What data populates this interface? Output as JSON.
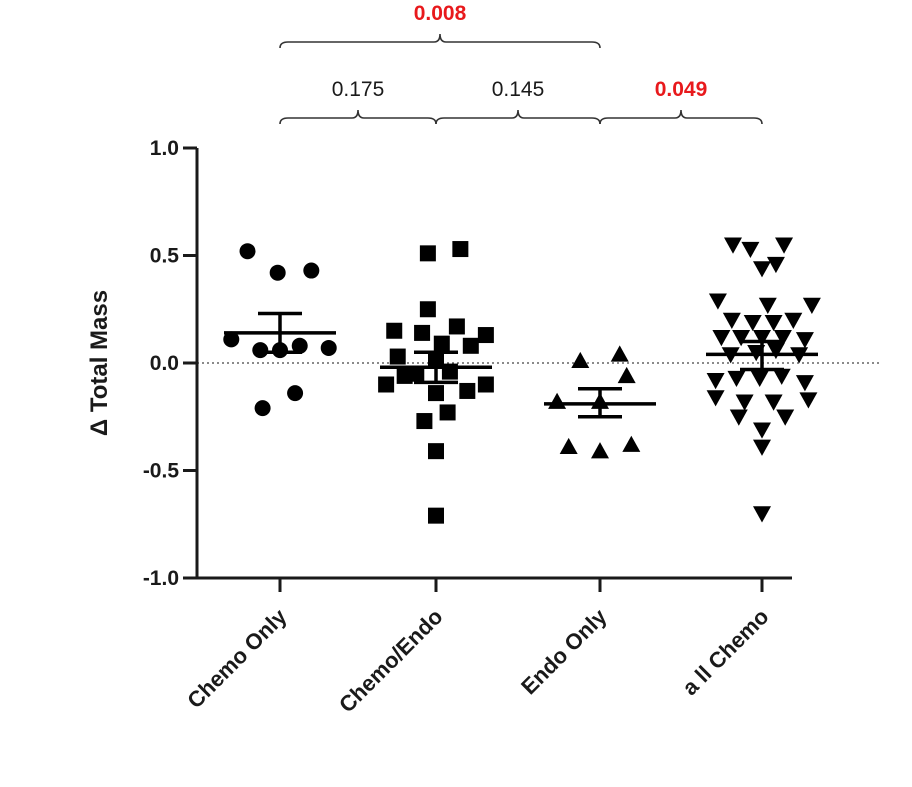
{
  "chart_data": {
    "type": "scatter",
    "ylabel": "Δ Total Mass",
    "ylim": [
      -1.0,
      1.0
    ],
    "yticks": [
      {
        "value": 1.0,
        "label": "1.0"
      },
      {
        "value": 0.5,
        "label": "0.5"
      },
      {
        "value": 0.0,
        "label": "0.0"
      },
      {
        "value": -0.5,
        "label": "-0.5"
      },
      {
        "value": -1.0,
        "label": "-1.0"
      }
    ],
    "reference_line": 0.0,
    "grid": false,
    "categories": [
      "Chemo Only",
      "Chemo/Endo",
      "Endo Only",
      "a ll Chemo"
    ],
    "series": [
      {
        "marker": "circle",
        "mean": 0.14,
        "sem_upper": 0.23,
        "sem_lower": 0.05,
        "points": [
          {
            "dx": -0.28,
            "y": 0.52
          },
          {
            "dx": -0.02,
            "y": 0.42
          },
          {
            "dx": 0.27,
            "y": 0.43
          },
          {
            "dx": -0.42,
            "y": 0.11
          },
          {
            "dx": -0.17,
            "y": 0.06
          },
          {
            "dx": 0.0,
            "y": 0.06
          },
          {
            "dx": 0.17,
            "y": 0.08
          },
          {
            "dx": 0.42,
            "y": 0.07
          },
          {
            "dx": -0.15,
            "y": -0.21
          },
          {
            "dx": 0.13,
            "y": -0.14
          }
        ]
      },
      {
        "marker": "square",
        "mean": -0.02,
        "sem_upper": 0.05,
        "sem_lower": -0.09,
        "points": [
          {
            "dx": -0.07,
            "y": 0.51
          },
          {
            "dx": 0.21,
            "y": 0.53
          },
          {
            "dx": -0.07,
            "y": 0.25
          },
          {
            "dx": 0.18,
            "y": 0.17
          },
          {
            "dx": -0.36,
            "y": 0.15
          },
          {
            "dx": -0.12,
            "y": 0.14
          },
          {
            "dx": 0.05,
            "y": 0.09
          },
          {
            "dx": 0.43,
            "y": 0.13
          },
          {
            "dx": 0.3,
            "y": 0.08
          },
          {
            "dx": -0.33,
            "y": 0.03
          },
          {
            "dx": 0.0,
            "y": 0.01
          },
          {
            "dx": -0.17,
            "y": -0.05
          },
          {
            "dx": 0.12,
            "y": -0.04
          },
          {
            "dx": -0.43,
            "y": -0.1
          },
          {
            "dx": -0.27,
            "y": -0.06
          },
          {
            "dx": 0.0,
            "y": -0.14
          },
          {
            "dx": 0.27,
            "y": -0.13
          },
          {
            "dx": 0.43,
            "y": -0.1
          },
          {
            "dx": -0.1,
            "y": -0.27
          },
          {
            "dx": 0.1,
            "y": -0.23
          },
          {
            "dx": 0.0,
            "y": -0.41
          },
          {
            "dx": 0.0,
            "y": -0.71
          }
        ]
      },
      {
        "marker": "triangle-up",
        "mean": -0.19,
        "sem_upper": -0.12,
        "sem_lower": -0.25,
        "points": [
          {
            "dx": -0.17,
            "y": 0.01
          },
          {
            "dx": 0.17,
            "y": 0.04
          },
          {
            "dx": 0.23,
            "y": -0.06
          },
          {
            "dx": -0.37,
            "y": -0.18
          },
          {
            "dx": 0.0,
            "y": -0.18
          },
          {
            "dx": -0.27,
            "y": -0.39
          },
          {
            "dx": 0.0,
            "y": -0.41
          },
          {
            "dx": 0.27,
            "y": -0.38
          }
        ]
      },
      {
        "marker": "triangle-down",
        "mean": 0.04,
        "sem_upper": 0.1,
        "sem_lower": -0.03,
        "points": [
          {
            "dx": -0.25,
            "y": 0.55
          },
          {
            "dx": -0.1,
            "y": 0.53
          },
          {
            "dx": 0.19,
            "y": 0.55
          },
          {
            "dx": 0.0,
            "y": 0.44
          },
          {
            "dx": 0.12,
            "y": 0.46
          },
          {
            "dx": -0.38,
            "y": 0.29
          },
          {
            "dx": 0.05,
            "y": 0.27
          },
          {
            "dx": 0.43,
            "y": 0.27
          },
          {
            "dx": -0.26,
            "y": 0.2
          },
          {
            "dx": -0.08,
            "y": 0.19
          },
          {
            "dx": 0.1,
            "y": 0.19
          },
          {
            "dx": 0.27,
            "y": 0.2
          },
          {
            "dx": -0.35,
            "y": 0.12
          },
          {
            "dx": -0.18,
            "y": 0.12
          },
          {
            "dx": 0.0,
            "y": 0.12
          },
          {
            "dx": 0.18,
            "y": 0.12
          },
          {
            "dx": 0.37,
            "y": 0.11
          },
          {
            "dx": -0.27,
            "y": 0.04
          },
          {
            "dx": -0.05,
            "y": 0.05
          },
          {
            "dx": 0.12,
            "y": 0.06
          },
          {
            "dx": 0.32,
            "y": 0.04
          },
          {
            "dx": -0.4,
            "y": -0.08
          },
          {
            "dx": -0.22,
            "y": -0.07
          },
          {
            "dx": -0.02,
            "y": -0.07
          },
          {
            "dx": 0.17,
            "y": -0.06
          },
          {
            "dx": 0.37,
            "y": -0.09
          },
          {
            "dx": -0.4,
            "y": -0.16
          },
          {
            "dx": -0.15,
            "y": -0.18
          },
          {
            "dx": 0.1,
            "y": -0.18
          },
          {
            "dx": 0.4,
            "y": -0.17
          },
          {
            "dx": -0.2,
            "y": -0.25
          },
          {
            "dx": 0.2,
            "y": -0.25
          },
          {
            "dx": 0.0,
            "y": -0.31
          },
          {
            "dx": 0.0,
            "y": -0.39
          },
          {
            "dx": 0.0,
            "y": -0.7
          }
        ]
      }
    ],
    "comparisons": [
      {
        "from": 0,
        "to": 1,
        "label": "0.175",
        "significant": false,
        "level": 1
      },
      {
        "from": 1,
        "to": 2,
        "label": "0.145",
        "significant": false,
        "level": 1
      },
      {
        "from": 2,
        "to": 3,
        "label": "0.049",
        "significant": true,
        "level": 1
      },
      {
        "from": 0,
        "to": 2,
        "label": "0.008",
        "significant": true,
        "level": 2
      }
    ],
    "colors": {
      "marker": "#000000",
      "axis": "#1a1a1a",
      "bracket": "#333333",
      "significant": "#e8191c",
      "not_significant": "#1a1a1a"
    }
  }
}
